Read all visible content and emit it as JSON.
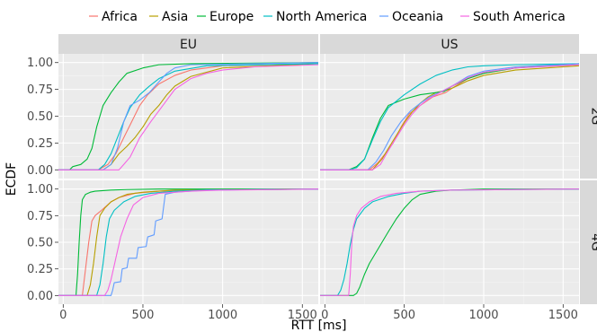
{
  "chart_data": {
    "type": "line",
    "title": "",
    "xlabel": "RTT [ms]",
    "ylabel": "ECDF",
    "xlim": [
      -30,
      1600
    ],
    "ylim": [
      0,
      1
    ],
    "xticks": [
      0,
      500,
      1000,
      1500
    ],
    "yticks": [
      0,
      0.25,
      0.5,
      0.75,
      1
    ],
    "ytick_labels": [
      "0.00",
      "0.25",
      "0.50",
      "0.75",
      "1.00"
    ],
    "grid": true,
    "legend_position": "top",
    "facet_columns": [
      "EU",
      "US"
    ],
    "facet_rows": [
      "2G",
      "4G"
    ],
    "series": [
      {
        "name": "Africa",
        "color": "#F8766D"
      },
      {
        "name": "Asia",
        "color": "#B79F00"
      },
      {
        "name": "Europe",
        "color": "#00BA38"
      },
      {
        "name": "North America",
        "color": "#00BFC4"
      },
      {
        "name": "Oceania",
        "color": "#619CFF"
      },
      {
        "name": "South America",
        "color": "#F564E3"
      }
    ],
    "panels": [
      {
        "column": "EU",
        "row": "2G",
        "lines": [
          {
            "series": "Africa",
            "x": [
              -30,
              220,
              280,
              330,
              380,
              430,
              480,
              530,
              600,
              700,
              800,
              1000,
              1600
            ],
            "y": [
              0,
              0,
              0.05,
              0.15,
              0.3,
              0.45,
              0.6,
              0.7,
              0.8,
              0.88,
              0.93,
              0.97,
              0.99
            ]
          },
          {
            "series": "Asia",
            "x": [
              -30,
              250,
              300,
              350,
              400,
              450,
              500,
              550,
              600,
              650,
              700,
              800,
              1000,
              1600
            ],
            "y": [
              0,
              0,
              0.05,
              0.15,
              0.22,
              0.3,
              0.4,
              0.52,
              0.6,
              0.7,
              0.78,
              0.87,
              0.95,
              0.99
            ]
          },
          {
            "series": "Europe",
            "x": [
              -30,
              40,
              60,
              110,
              150,
              180,
              210,
              250,
              300,
              350,
              400,
              500,
              600,
              800,
              1600
            ],
            "y": [
              0,
              0,
              0.03,
              0.05,
              0.1,
              0.2,
              0.4,
              0.6,
              0.72,
              0.82,
              0.9,
              0.95,
              0.98,
              0.99,
              1.0
            ]
          },
          {
            "series": "North America",
            "x": [
              -30,
              220,
              260,
              300,
              340,
              380,
              420,
              480,
              540,
              600,
              700,
              900,
              1600
            ],
            "y": [
              0,
              0,
              0.05,
              0.15,
              0.3,
              0.45,
              0.58,
              0.7,
              0.78,
              0.85,
              0.92,
              0.97,
              0.99
            ]
          },
          {
            "series": "Oceania",
            "x": [
              -30,
              250,
              300,
              340,
              380,
              420,
              480,
              540,
              600,
              650,
              700,
              800,
              1600
            ],
            "y": [
              0,
              0,
              0.05,
              0.2,
              0.45,
              0.6,
              0.65,
              0.72,
              0.82,
              0.9,
              0.95,
              0.98,
              1.0
            ]
          },
          {
            "series": "South America",
            "x": [
              -30,
              350,
              380,
              420,
              480,
              550,
              600,
              650,
              700,
              800,
              900,
              1000,
              1200,
              1600
            ],
            "y": [
              0,
              0,
              0.05,
              0.12,
              0.3,
              0.45,
              0.55,
              0.65,
              0.75,
              0.85,
              0.9,
              0.93,
              0.96,
              0.98
            ]
          }
        ]
      },
      {
        "column": "US",
        "row": "2G",
        "lines": [
          {
            "series": "Africa",
            "x": [
              -30,
              280,
              330,
              380,
              430,
              480,
              530,
              600,
              680,
              760,
              800,
              900,
              1000,
              1200,
              1600
            ],
            "y": [
              0,
              0,
              0.06,
              0.15,
              0.25,
              0.4,
              0.52,
              0.6,
              0.68,
              0.72,
              0.76,
              0.85,
              0.9,
              0.95,
              0.98
            ]
          },
          {
            "series": "Asia",
            "x": [
              -30,
              300,
              330,
              360,
              400,
              450,
              500,
              550,
              600,
              650,
              700,
              760,
              800,
              900,
              1000,
              1200,
              1600
            ],
            "y": [
              0,
              0,
              0.05,
              0.1,
              0.2,
              0.32,
              0.44,
              0.54,
              0.62,
              0.68,
              0.72,
              0.74,
              0.76,
              0.83,
              0.88,
              0.93,
              0.97
            ]
          },
          {
            "series": "Europe",
            "x": [
              -30,
              150,
              200,
              250,
              300,
              350,
              400,
              500,
              600,
              700,
              750,
              800,
              900,
              1000,
              1200,
              1600
            ],
            "y": [
              0,
              0,
              0.03,
              0.1,
              0.3,
              0.48,
              0.6,
              0.66,
              0.7,
              0.72,
              0.73,
              0.78,
              0.85,
              0.9,
              0.95,
              0.99
            ]
          },
          {
            "series": "North America",
            "x": [
              -30,
              150,
              200,
              250,
              300,
              350,
              400,
              500,
              600,
              700,
              800,
              900,
              1000,
              1200,
              1600
            ],
            "y": [
              0,
              0,
              0.02,
              0.1,
              0.28,
              0.45,
              0.58,
              0.7,
              0.8,
              0.88,
              0.93,
              0.96,
              0.97,
              0.98,
              0.99
            ]
          },
          {
            "series": "Oceania",
            "x": [
              -30,
              270,
              320,
              370,
              420,
              480,
              540,
              600,
              660,
              720,
              800,
              900,
              1000,
              1200,
              1600
            ],
            "y": [
              0,
              0,
              0.07,
              0.18,
              0.32,
              0.45,
              0.55,
              0.62,
              0.68,
              0.72,
              0.78,
              0.87,
              0.92,
              0.96,
              0.99
            ]
          },
          {
            "series": "South America",
            "x": [
              -30,
              300,
              350,
              400,
              450,
              500,
              550,
              600,
              650,
              700,
              800,
              900,
              1000,
              1200,
              1600
            ],
            "y": [
              0,
              0,
              0.05,
              0.18,
              0.3,
              0.42,
              0.52,
              0.6,
              0.66,
              0.7,
              0.78,
              0.86,
              0.91,
              0.95,
              0.98
            ]
          }
        ]
      },
      {
        "column": "EU",
        "row": "4G",
        "lines": [
          {
            "series": "Africa",
            "x": [
              -30,
              120,
              140,
              160,
              180,
              200,
              240,
              300,
              350,
              450,
              600,
              800,
              1600
            ],
            "y": [
              0,
              0,
              0.25,
              0.5,
              0.7,
              0.75,
              0.8,
              0.88,
              0.92,
              0.96,
              0.98,
              0.99,
              1.0
            ]
          },
          {
            "series": "Asia",
            "x": [
              -30,
              150,
              170,
              190,
              210,
              230,
              260,
              300,
              350,
              400,
              500,
              700,
              1600
            ],
            "y": [
              0,
              0,
              0.1,
              0.3,
              0.55,
              0.75,
              0.82,
              0.88,
              0.92,
              0.95,
              0.97,
              0.99,
              1.0
            ]
          },
          {
            "series": "Europe",
            "x": [
              -30,
              80,
              90,
              100,
              110,
              120,
              140,
              170,
              200,
              300,
              400,
              600,
              1600
            ],
            "y": [
              0,
              0,
              0.2,
              0.5,
              0.75,
              0.9,
              0.95,
              0.97,
              0.98,
              0.99,
              0.995,
              1.0,
              1.0
            ]
          },
          {
            "series": "North America",
            "x": [
              -30,
              210,
              230,
              250,
              270,
              290,
              320,
              380,
              450,
              550,
              700,
              900,
              1600
            ],
            "y": [
              0,
              0,
              0.1,
              0.3,
              0.55,
              0.72,
              0.8,
              0.88,
              0.93,
              0.96,
              0.98,
              0.99,
              1.0
            ]
          },
          {
            "series": "Oceania",
            "x": [
              -30,
              280,
              300,
              310,
              320,
              360,
              370,
              400,
              410,
              460,
              470,
              520,
              530,
              570,
              580,
              620,
              640,
              700,
              900,
              1600
            ],
            "y": [
              0,
              0,
              0,
              0.05,
              0.12,
              0.13,
              0.25,
              0.26,
              0.35,
              0.35,
              0.45,
              0.46,
              0.55,
              0.57,
              0.7,
              0.72,
              0.95,
              0.97,
              0.99,
              1.0
            ]
          },
          {
            "series": "South America",
            "x": [
              -30,
              260,
              280,
              300,
              330,
              360,
              400,
              440,
              500,
              600,
              800,
              1000,
              1600
            ],
            "y": [
              0,
              0,
              0.05,
              0.15,
              0.35,
              0.55,
              0.72,
              0.85,
              0.92,
              0.96,
              0.98,
              0.99,
              1.0
            ]
          }
        ]
      },
      {
        "column": "US",
        "row": "4G",
        "lines": [
          {
            "series": "Europe",
            "x": [
              -30,
              180,
              200,
              220,
              250,
              280,
              320,
              360,
              400,
              450,
              500,
              550,
              600,
              700,
              800,
              1000,
              1600
            ],
            "y": [
              0,
              0,
              0.02,
              0.08,
              0.2,
              0.3,
              0.4,
              0.5,
              0.6,
              0.72,
              0.82,
              0.9,
              0.95,
              0.98,
              0.99,
              1.0,
              1.0
            ]
          },
          {
            "series": "North America",
            "x": [
              -30,
              80,
              100,
              120,
              140,
              160,
              180,
              200,
              250,
              300,
              400,
              500,
              600,
              800,
              1600
            ],
            "y": [
              0,
              0,
              0.05,
              0.15,
              0.3,
              0.48,
              0.62,
              0.72,
              0.82,
              0.88,
              0.93,
              0.96,
              0.98,
              0.99,
              1.0
            ]
          },
          {
            "series": "South America",
            "x": [
              -30,
              150,
              160,
              170,
              180,
              200,
              230,
              280,
              350,
              450,
              600,
              800,
              1600
            ],
            "y": [
              0,
              0,
              0.2,
              0.5,
              0.65,
              0.75,
              0.82,
              0.88,
              0.93,
              0.96,
              0.98,
              0.99,
              1.0
            ]
          }
        ]
      }
    ]
  }
}
